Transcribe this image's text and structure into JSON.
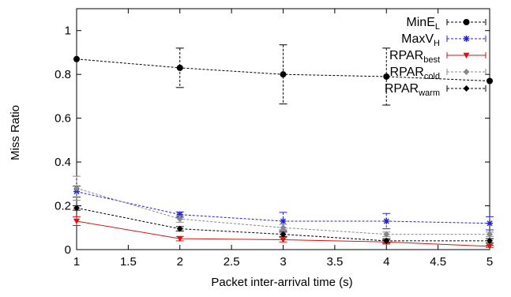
{
  "chart_data": {
    "type": "line",
    "xlabel": "Packet inter-arrival time (s)",
    "ylabel": "Miss Ratio",
    "xlim": [
      1,
      5
    ],
    "ylim": [
      0,
      1.1
    ],
    "xticks": [
      "1",
      "1.5",
      "2",
      "2.5",
      "3",
      "3.5",
      "4",
      "4.5",
      "5"
    ],
    "xtick_values": [
      1,
      1.5,
      2,
      2.5,
      3,
      3.5,
      4,
      4.5,
      5
    ],
    "yticks": [
      "0",
      "0.2",
      "0.4",
      "0.6",
      "0.8",
      "1"
    ],
    "ytick_values": [
      0,
      0.2,
      0.4,
      0.6,
      0.8,
      1
    ],
    "grid": false,
    "legend_position": "top-right",
    "x": [
      1,
      2,
      3,
      4,
      5
    ],
    "series": [
      {
        "name": "MinE",
        "name_sub": "L",
        "color": "#000000",
        "dash": "dotted",
        "marker": "circle",
        "values": [
          0.87,
          0.83,
          0.8,
          0.79,
          0.77
        ],
        "err": [
          0.0,
          0.09,
          0.135,
          0.13,
          0.0
        ]
      },
      {
        "name": "MaxV",
        "name_sub": "H",
        "color": "#2222cc",
        "dash": "dotted",
        "marker": "star",
        "values": [
          0.265,
          0.16,
          0.13,
          0.13,
          0.12
        ],
        "err": [
          0.025,
          0.012,
          0.04,
          0.035,
          0.03
        ]
      },
      {
        "name": "RPAR",
        "name_sub": "best",
        "color": "#dd1111",
        "dash": "solid",
        "marker": "triangle-down",
        "values": [
          0.13,
          0.05,
          0.045,
          0.035,
          0.015
        ],
        "err": [
          0.02,
          0.01,
          0.01,
          0.01,
          0.005
        ]
      },
      {
        "name": "RPAR",
        "name_sub": "cold",
        "color": "#888888",
        "dash": "dotted",
        "marker": "diamond",
        "values": [
          0.28,
          0.14,
          0.1,
          0.07,
          0.07
        ],
        "err": [
          0.055,
          0.015,
          0.015,
          0.01,
          0.01
        ]
      },
      {
        "name": "RPAR",
        "name_sub": "warm",
        "color": "#000000",
        "dash": "dotted",
        "marker": "diamond",
        "values": [
          0.19,
          0.095,
          0.07,
          0.04,
          0.04
        ],
        "err": [
          0.01,
          0.01,
          0.01,
          0.01,
          0.01
        ]
      }
    ]
  }
}
